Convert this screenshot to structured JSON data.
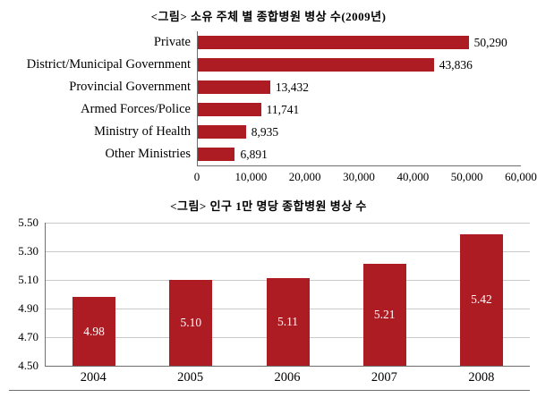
{
  "chart_data": [
    {
      "type": "bar",
      "orientation": "horizontal",
      "title": "<그림> 소유 주체 별 종합병원 병상 수(2009년)",
      "categories": [
        "Private",
        "District/Municipal Government",
        "Provincial Government",
        "Armed Forces/Police",
        "Ministry of Health",
        "Other Ministries"
      ],
      "values": [
        50290,
        43836,
        13432,
        11741,
        8935,
        6891
      ],
      "value_labels": [
        "50,290",
        "43,836",
        "13,432",
        "11,741",
        "8,935",
        "6,891"
      ],
      "xlim": [
        0,
        60000
      ],
      "x_ticks": [
        "0",
        "10,000",
        "20,000",
        "30,000",
        "40,000",
        "50,000",
        "60,000"
      ],
      "bar_color": "#ae1c23",
      "grid": false,
      "legend": "none"
    },
    {
      "type": "bar",
      "orientation": "vertical",
      "title": "<그림> 인구 1만 명당 종합병원 병상 수",
      "categories": [
        "2004",
        "2005",
        "2006",
        "2007",
        "2008"
      ],
      "values": [
        4.98,
        5.1,
        5.11,
        5.21,
        5.42
      ],
      "value_labels": [
        "4.98",
        "5.10",
        "5.11",
        "5.21",
        "5.42"
      ],
      "ylim": [
        4.5,
        5.5
      ],
      "y_ticks": [
        "5.50",
        "5.30",
        "5.10",
        "4.90",
        "4.70",
        "4.50"
      ],
      "bar_color": "#ae1c23",
      "grid": true,
      "legend": "none"
    }
  ]
}
